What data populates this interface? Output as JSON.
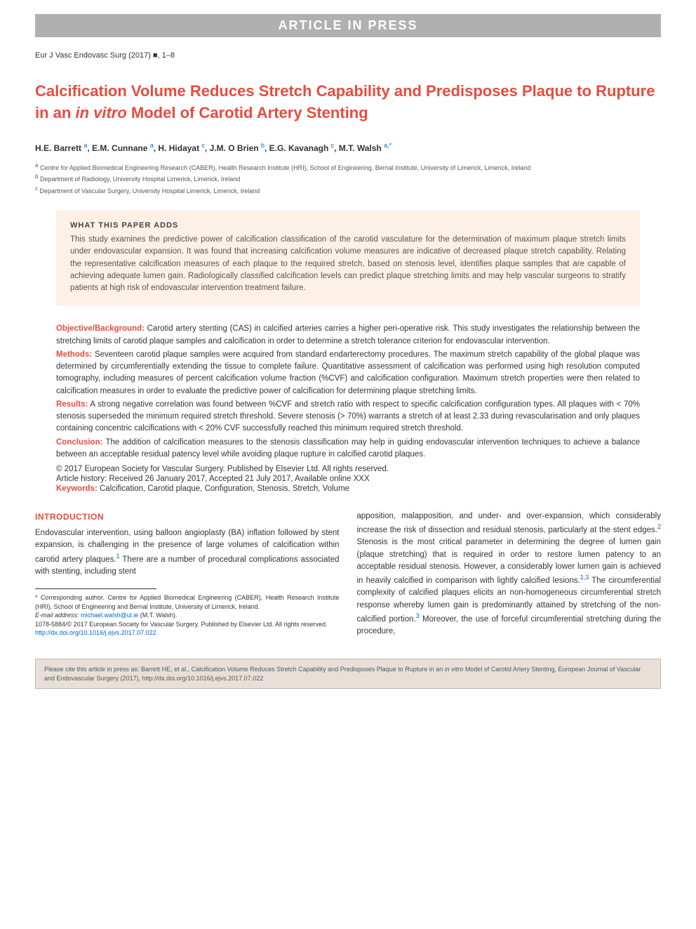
{
  "banner": "ARTICLE IN PRESS",
  "journal_ref": "Eur J Vasc Endovasc Surg (2017) ■, 1–8",
  "title_part1": "Calcification Volume Reduces Stretch Capability and Predisposes Plaque to Rupture in an ",
  "title_italic": "in vitro",
  "title_part2": " Model of Carotid Artery Stenting",
  "authors": {
    "list": "H.E. Barrett ",
    "a1_sup": "a",
    "a2": ", E.M. Cunnane ",
    "a2_sup": "a",
    "a3": ", H. Hidayat ",
    "a3_sup": "c",
    "a4": ", J.M. O Brien ",
    "a4_sup": "b",
    "a5": ", E.G. Kavanagh ",
    "a5_sup": "c",
    "a6": ", M.T. Walsh ",
    "a6_sup": "a,*"
  },
  "affiliations": {
    "a": "Centre for Applied Biomedical Engineering Research (CABER), Health Research Institute (HRI), School of Engineering, Bernal Institute, University of Limerick, Limerick, Ireland",
    "b": "Department of Radiology, University Hospital Limerick, Limerick, Ireland",
    "c": "Department of Vascular Surgery, University Hospital Limerick, Limerick, Ireland"
  },
  "highlights": {
    "title": "WHAT THIS PAPER ADDS",
    "text": "This study examines the predictive power of calcification classification of the carotid vasculature for the determination of maximum plaque stretch limits under endovascular expansion. It was found that increasing calcification volume measures are indicative of decreased plaque stretch capability. Relating the representative calcification measures of each plaque to the required stretch, based on stenosis level, identifies plaque samples that are capable of achieving adequate lumen gain. Radiologically classified calcification levels can predict plaque stretching limits and may help vascular surgeons to stratify patients at high risk of endovascular intervention treatment failure."
  },
  "abstract": {
    "objective_label": "Objective/Background:",
    "objective": " Carotid artery stenting (CAS) in calcified arteries carries a higher peri-operative risk. This study investigates the relationship between the stretching limits of carotid plaque samples and calcification in order to determine a stretch tolerance criterion for endovascular intervention.",
    "methods_label": "Methods:",
    "methods": " Seventeen carotid plaque samples were acquired from standard endarterectomy procedures. The maximum stretch capability of the global plaque was determined by circumferentially extending the tissue to complete failure. Quantitative assessment of calcification was performed using high resolution computed tomography, including measures of percent calcification volume fraction (%CVF) and calcification configuration. Maximum stretch properties were then related to calcification measures in order to evaluate the predictive power of calcification for determining plaque stretching limits.",
    "results_label": "Results:",
    "results": " A strong negative correlation was found between %CVF and stretch ratio with respect to specific calcification configuration types. All plaques with < 70% stenosis superseded the minimum required stretch threshold. Severe stenosis (> 70%) warrants a stretch of at least 2.33 during revascularisation and only plaques containing concentric calcifications with < 20% CVF successfully reached this minimum required stretch threshold.",
    "conclusion_label": "Conclusion:",
    "conclusion": " The addition of calcification measures to the stenosis classification may help in guiding endovascular intervention techniques to achieve a balance between an acceptable residual patency level while avoiding plaque rupture in calcified carotid plaques.",
    "copyright": "© 2017 European Society for Vascular Surgery. Published by Elsevier Ltd. All rights reserved.",
    "history": "Article history: Received 26 January 2017, Accepted 21 July 2017, Available online XXX",
    "keywords_label": "Keywords:",
    "keywords": " Calcification, Carotid plaque, Configuration, Stenosis, Stretch, Volume"
  },
  "intro": {
    "heading": "INTRODUCTION",
    "col1": "Endovascular intervention, using balloon angioplasty (BA) inflation followed by stent expansion, is challenging in the presence of large volumes of calcification within carotid artery plaques.",
    "col1_ref1": "1",
    "col1_cont": " There are a number of procedural complications associated with stenting, including stent",
    "col2": "apposition, malapposition, and under- and over-expansion, which considerably increase the risk of dissection and residual stenosis, particularly at the stent edges.",
    "col2_ref2": "2",
    "col2_cont1": " Stenosis is the most critical parameter in determining the degree of lumen gain (plaque stretching) that is required in order to restore lumen patency to an acceptable residual stenosis. However, a considerably lower lumen gain is achieved in heavily calcified in comparison with lightly calcified lesions.",
    "col2_ref13": "1,3",
    "col2_cont2": " The circumferential complexity of calcified plaques elicits an non-homogeneous circumferential stretch response whereby lumen gain is predominantly attained by stretching of the non-calcified portion.",
    "col2_ref3": "3",
    "col2_cont3": " Moreover, the use of forceful circumferential stretching during the procedure,"
  },
  "footnotes": {
    "corresponding": "* Corresponding author. Centre for Applied Biomedical Engineering (CABER), Health Research Institute (HRI), School of Engineering and Bernal Institute, University of Limerick, Ireland.",
    "email_label": "E-mail address:",
    "email": "michael.walsh@ul.ie",
    "email_suffix": " (M.T. Walsh).",
    "issn": "1078-5884/© 2017 European Society for Vascular Surgery. Published by Elsevier Ltd. All rights reserved.",
    "doi": "http://dx.doi.org/10.1016/j.ejvs.2017.07.022"
  },
  "citation": {
    "prefix": "Please cite this article in press as: Barrett HE, et al., Calcification Volume Reduces Stretch Capability and Predisposes Plaque to Rupture in an ",
    "italic": "in vitro",
    "suffix": " Model of Carotid Artery Stenting, European Journal of Vascular and Endovascular Surgery (2017), http://dx.doi.org/10.1016/j.ejvs.2017.07.022"
  },
  "colors": {
    "accent": "#e74c3c",
    "link": "#0066cc",
    "banner_bg": "#b0b0b0",
    "highlights_bg": "#fdf0e6",
    "citation_bg": "#e8e0d8"
  }
}
